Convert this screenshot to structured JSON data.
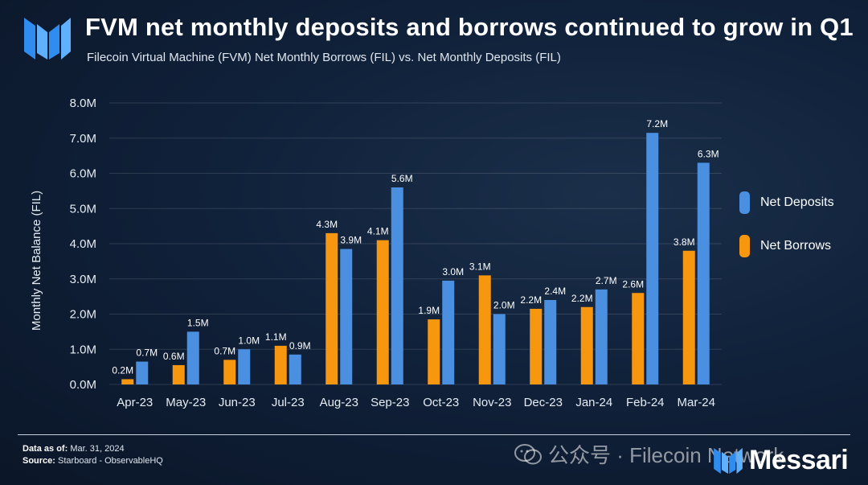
{
  "header": {
    "title": "FVM net monthly deposits and borrows continued to grow in Q1",
    "subtitle": "Filecoin Virtual Machine (FVM) Net Monthly Borrows (FIL) vs. Net Monthly Deposits (FIL)"
  },
  "colors": {
    "deposits": "#4a8fe0",
    "borrows": "#f7960f",
    "brand": "#2f8cf0"
  },
  "chart_data": {
    "type": "bar",
    "title": "FVM net monthly deposits and borrows continued to grow in Q1",
    "subtitle": "Filecoin Virtual Machine (FVM) Net Monthly Borrows (FIL) vs. Net Monthly Deposits (FIL)",
    "xlabel": "",
    "ylabel": "Monthly Net Balance (FIL)",
    "ylim": [
      0,
      8.0
    ],
    "y_unit": "M",
    "yticks": [
      "0.0M",
      "1.0M",
      "2.0M",
      "3.0M",
      "4.0M",
      "5.0M",
      "6.0M",
      "7.0M",
      "8.0M"
    ],
    "grid": true,
    "legend_position": "right",
    "categories": [
      "Apr-23",
      "May-23",
      "Jun-23",
      "Jul-23",
      "Aug-23",
      "Sep-23",
      "Oct-23",
      "Nov-23",
      "Dec-23",
      "Jan-24",
      "Feb-24",
      "Mar-24"
    ],
    "series": [
      {
        "name": "Net Borrows",
        "color": "#f7960f",
        "values": [
          0.15,
          0.55,
          0.7,
          1.1,
          4.3,
          4.1,
          1.85,
          3.1,
          2.15,
          2.2,
          2.6,
          3.8
        ],
        "labels": [
          "0.2M",
          "0.6M",
          "0.7M",
          "1.1M",
          "4.3M",
          "4.1M",
          "1.9M",
          "3.1M",
          "2.2M",
          "2.2M",
          "2.6M",
          "3.8M"
        ]
      },
      {
        "name": "Net Deposits",
        "color": "#4a8fe0",
        "values": [
          0.65,
          1.5,
          1.0,
          0.85,
          3.85,
          5.6,
          2.95,
          2.0,
          2.4,
          2.7,
          7.15,
          6.3
        ],
        "labels": [
          "0.7M",
          "1.5M",
          "1.0M",
          "0.9M",
          "3.9M",
          "5.6M",
          "3.0M",
          "2.0M",
          "2.4M",
          "2.7M",
          "7.2M",
          "6.3M"
        ]
      }
    ]
  },
  "legend": {
    "deposits_label": "Net Deposits",
    "borrows_label": "Net Borrows"
  },
  "footer": {
    "data_as_of_label": "Data as of:",
    "data_as_of_value": "Mar. 31, 2024",
    "source_label": "Source:",
    "source_value": "Starboard - ObservableHQ"
  },
  "watermark": {
    "text": "公众号 · Filecoin Network"
  },
  "brand": {
    "name": "Messari"
  }
}
